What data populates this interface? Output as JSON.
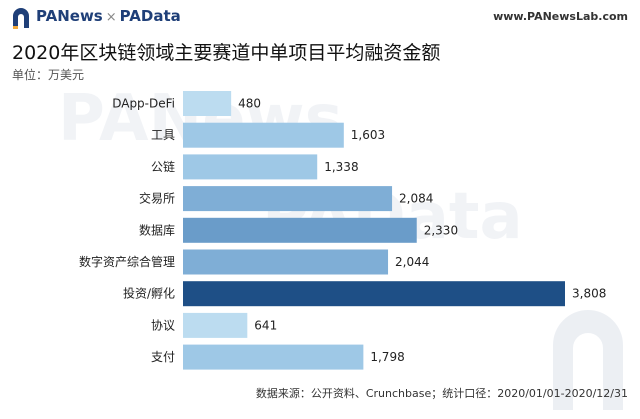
{
  "header": {
    "brand_left": "PANews",
    "brand_sep": "×",
    "brand_right": "PAData",
    "site": "www.PANewsLab.com"
  },
  "watermarks": [
    "PANews",
    "PAData"
  ],
  "chart_data": {
    "type": "bar",
    "orientation": "horizontal",
    "title": "2020年区块链领域主要赛道中单项目平均融资金额",
    "unit": "单位：万美元",
    "categories": [
      "DApp-DeFi",
      "工具",
      "公链",
      "交易所",
      "数据库",
      "数字资产综合管理",
      "投资/孵化",
      "协议",
      "支付"
    ],
    "values": [
      480,
      1603,
      1338,
      2084,
      2330,
      2044,
      3808,
      641,
      1798
    ],
    "value_labels": [
      "480",
      "1,603",
      "1,338",
      "2,084",
      "2,330",
      "2,044",
      "3,808",
      "641",
      "1,798"
    ],
    "xlim": [
      0,
      3808
    ],
    "grid": false,
    "legend": "none",
    "colors": {
      "lightest": "#bcdcf0",
      "light": "#9ec8e6",
      "mid": "#7faed6",
      "mid_dark": "#6a9cc9",
      "darkest": "#1e4f86"
    }
  },
  "source": "数据来源：公开资料、Crunchbase；统计口径：2020/01/01-2020/12/31"
}
